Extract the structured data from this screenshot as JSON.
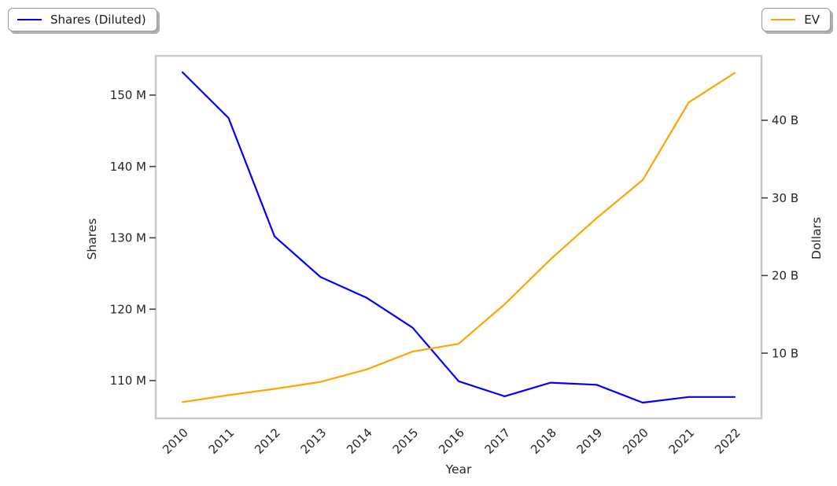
{
  "legends": [
    {
      "label": "Shares (Diluted)",
      "color": "#0000ff"
    },
    {
      "label": "EV",
      "color": "#ffa500"
    }
  ],
  "chart_data": {
    "type": "line",
    "title": "",
    "xlabel": "Year",
    "x": [
      2010,
      2011,
      2012,
      2013,
      2014,
      2015,
      2016,
      2017,
      2018,
      2019,
      2020,
      2021,
      2022
    ],
    "series": [
      {
        "name": "Shares (Diluted)",
        "axis": "left",
        "color": "#0000ff",
        "unit": "M",
        "values": [
          153.2,
          146.8,
          130.2,
          124.5,
          121.6,
          117.4,
          109.9,
          107.8,
          109.7,
          109.4,
          106.9,
          107.7,
          107.7
        ]
      },
      {
        "name": "EV",
        "axis": "right",
        "color": "#ffa500",
        "unit": "B",
        "values": [
          3.7,
          4.6,
          5.4,
          6.3,
          7.9,
          10.2,
          11.2,
          16.3,
          22.1,
          27.4,
          32.3,
          42.3,
          46.1
        ]
      }
    ],
    "left_axis": {
      "label": "Shares",
      "unit": "M",
      "ticks": [
        "110 M",
        "120 M",
        "130 M",
        "140 M",
        "150 M"
      ],
      "tick_values": [
        110,
        120,
        130,
        140,
        150
      ],
      "range": [
        104.7,
        155.5
      ]
    },
    "right_axis": {
      "label": "Dollars",
      "unit": "B",
      "ticks": [
        "10 B",
        "20 B",
        "30 B",
        "40 B"
      ],
      "tick_values": [
        10,
        20,
        30,
        40
      ],
      "range": [
        1.6,
        48.3
      ]
    },
    "grid": false,
    "legend_position": "outside-top-left-and-top-right"
  }
}
